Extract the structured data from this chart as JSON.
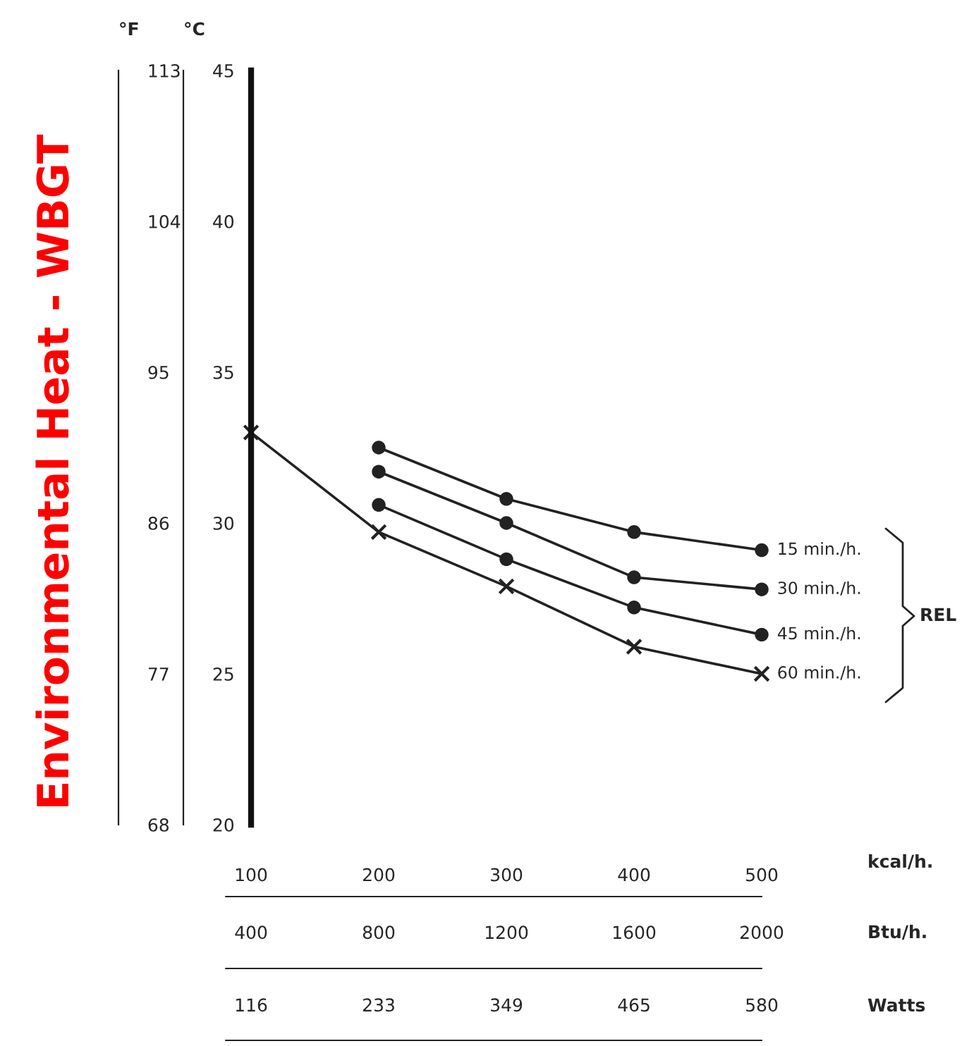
{
  "chart_data": {
    "type": "line",
    "title": "Environmental Heat - WBGT",
    "ylabel": "°C",
    "y2label": "°F",
    "xlabel": "kcal/h.",
    "x2label": "Btu/h.",
    "x": [
      100,
      200,
      300,
      400,
      500
    ],
    "series": [
      {
        "name": "15 min./h.",
        "color": "#222222",
        "marker": "circle",
        "values": [
          null,
          32.5,
          30.8,
          29.7,
          29.1
        ]
      },
      {
        "name": "30 min./h.",
        "color": "#222222",
        "marker": "circle",
        "values": [
          null,
          31.7,
          30.0,
          28.2,
          27.8
        ]
      },
      {
        "name": "45 min./h.",
        "color": "#222222",
        "marker": "circle",
        "values": [
          null,
          30.6,
          28.8,
          27.2,
          26.3
        ]
      },
      {
        "name": "60 min./h.",
        "color": "#222222",
        "marker": "cross",
        "values": [
          33.0,
          29.7,
          27.9,
          25.9,
          25.0
        ]
      }
    ],
    "xlim": [
      100,
      500
    ],
    "xticks": [
      100,
      200,
      300,
      400,
      500
    ],
    "x2lim": [
      400,
      2000
    ],
    "x2ticks": [
      400,
      800,
      1200,
      1600,
      2000
    ],
    "ylim": [
      20,
      45
    ],
    "yticks": [
      20,
      25,
      30,
      35,
      40,
      45
    ],
    "y2lim": [
      68,
      113
    ],
    "y2ticks": [
      68,
      77,
      86,
      95,
      104,
      113
    ],
    "annotations": [
      "REL",
      "Watts",
      "116",
      "233",
      "349",
      "465",
      "580"
    ],
    "grid": false,
    "legend": false,
    "line_style": "solid"
  }
}
